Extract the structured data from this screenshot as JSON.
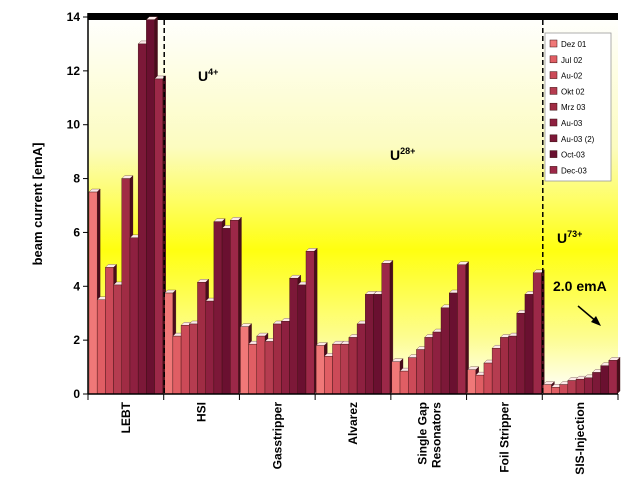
{
  "chart_data": {
    "type": "bar",
    "xlabel": "",
    "ylabel": "beam current [emA]",
    "ylim": [
      0,
      14
    ],
    "yticks": [
      0,
      2,
      4,
      6,
      8,
      10,
      12,
      14
    ],
    "categories": [
      "LEBT",
      "HSI",
      "Gasstripper",
      "Alvarez",
      "Single Gap Resonators",
      "Foil Stripper",
      "SIS-Injection"
    ],
    "series": [
      {
        "name": "Dez 01",
        "color": "#f07878",
        "values": [
          7.5,
          3.75,
          2.5,
          1.8,
          1.2,
          0.9,
          0.35
        ]
      },
      {
        "name": "Jul 02",
        "color": "#e05e64",
        "values": [
          3.5,
          2.15,
          1.85,
          1.4,
          0.85,
          0.7,
          0.25
        ]
      },
      {
        "name": "Au-02",
        "color": "#cc4a58",
        "values": [
          4.7,
          2.55,
          2.15,
          1.85,
          1.35,
          1.15,
          0.35
        ]
      },
      {
        "name": "Okt 02",
        "color": "#b53c50",
        "values": [
          4.05,
          2.6,
          1.95,
          1.85,
          1.65,
          1.7,
          0.5
        ]
      },
      {
        "name": "Mrz 03",
        "color": "#a02c44",
        "values": [
          8.0,
          4.15,
          2.6,
          2.1,
          2.1,
          2.1,
          0.55
        ]
      },
      {
        "name": "Au-03",
        "color": "#8e2040",
        "values": [
          5.8,
          3.45,
          2.7,
          2.6,
          2.3,
          2.15,
          0.6
        ]
      },
      {
        "name": "Au-03 (2)",
        "color": "#7c1838",
        "values": [
          13.0,
          6.4,
          4.3,
          3.7,
          3.2,
          3.0,
          0.8
        ]
      },
      {
        "name": "Oct-03",
        "color": "#6a1030",
        "values": [
          13.9,
          6.15,
          4.05,
          3.7,
          3.75,
          3.7,
          1.05
        ]
      },
      {
        "name": "Dec-03",
        "color": "#9c2848",
        "values": [
          11.7,
          6.45,
          5.3,
          4.85,
          4.8,
          4.5,
          1.25
        ]
      }
    ],
    "annotations": [
      {
        "text": "U",
        "sup": "4+"
      },
      {
        "text": "U",
        "sup": "28+"
      },
      {
        "text": "U",
        "sup": "73+"
      },
      {
        "text": "2.0 emA"
      }
    ],
    "legend_position": "top-right",
    "grid": false
  }
}
